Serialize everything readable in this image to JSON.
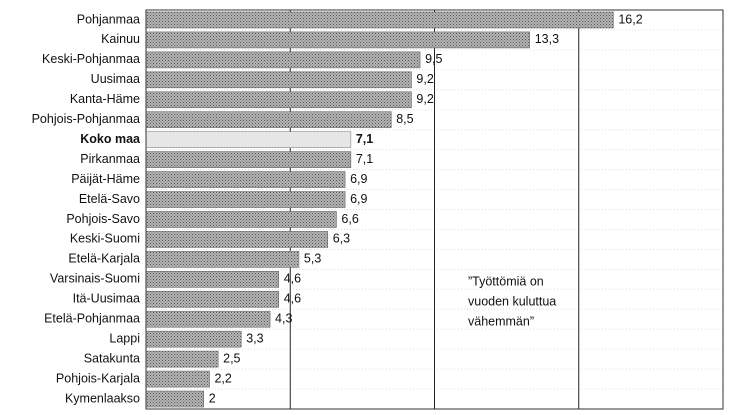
{
  "chart_data": {
    "type": "bar",
    "orientation": "horizontal",
    "categories": [
      "Pohjanmaa",
      "Kainuu",
      "Keski-Pohjanmaa",
      "Uusimaa",
      "Kanta-Häme",
      "Pohjois-Pohjanmaa",
      "Koko maa",
      "Pirkanmaa",
      "Päijät-Häme",
      "Etelä-Savo",
      "Pohjois-Savo",
      "Keski-Suomi",
      "Etelä-Karjala",
      "Varsinais-Suomi",
      "Itä-Uusimaa",
      "Etelä-Pohjanmaa",
      "Lappi",
      "Satakunta",
      "Pohjois-Karjala",
      "Kymenlaakso"
    ],
    "values": [
      16.2,
      13.3,
      9.5,
      9.2,
      9.2,
      8.5,
      7.1,
      7.1,
      6.9,
      6.9,
      6.6,
      6.3,
      5.3,
      4.6,
      4.6,
      4.3,
      3.3,
      2.5,
      2.2,
      2
    ],
    "value_labels": [
      "16,2",
      "13,3",
      "9,5",
      "9,2",
      "9,2",
      "8,5",
      "7,1",
      "7,1",
      "6,9",
      "6,9",
      "6,6",
      "6,3",
      "5,3",
      "4,6",
      "4,6",
      "4,3",
      "3,3",
      "2,5",
      "2,2",
      "2"
    ],
    "color": "#9a9a9a",
    "highlight_category": "Koko maa",
    "highlight_color": "#e6e6e6",
    "xlim": [
      0,
      20
    ],
    "xticks": [
      0,
      5,
      10,
      15,
      20
    ],
    "grid": true,
    "annotation": [
      "”Työttömiä on",
      "vuoden kuluttua",
      "vähemmän”"
    ]
  }
}
